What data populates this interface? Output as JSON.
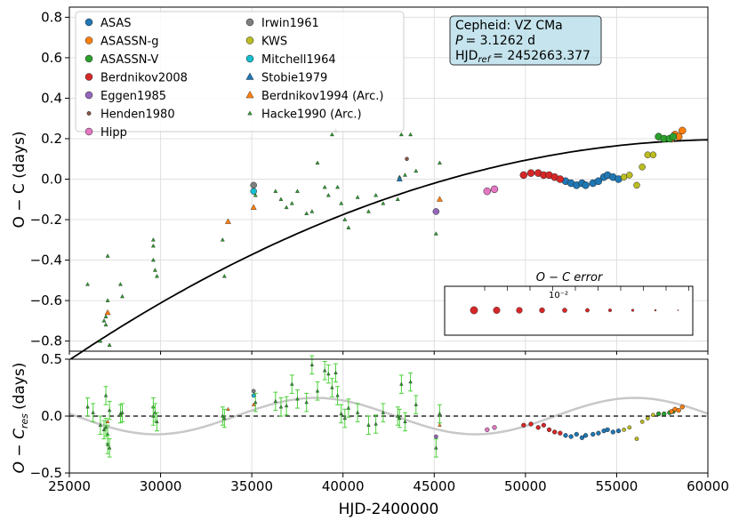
{
  "chart_data": [
    {
      "panel": "top",
      "type": "scatter",
      "xlabel": "",
      "ylabel": "O − C (days)",
      "xlim": [
        25000,
        60000
      ],
      "ylim": [
        -0.85,
        0.85
      ],
      "yticks": [
        "−0.8",
        "−0.6",
        "−0.4",
        "−0.2",
        "0.0",
        "0.2",
        "0.4",
        "0.6",
        "0.8"
      ],
      "ytick_values": [
        -0.8,
        -0.6,
        -0.4,
        -0.2,
        0.0,
        0.2,
        0.4,
        0.6,
        0.8
      ],
      "grid": true,
      "info_box": [
        "Cepheid: VZ CMa",
        "P = 3.1262 d",
        "HJDref = 2452663.377"
      ],
      "info_lines": {
        "name": "Cepheid: VZ CMa",
        "period_label": "P",
        "period_value": "= 3.1262 d",
        "hjd_label": "HJD",
        "hjd_sub": "ref",
        "hjd_value": "= 2452663.377"
      },
      "size_legend": {
        "title": "O − C error",
        "scale_label": "10⁻²",
        "steps": 10
      },
      "fit_curve": {
        "a": -8.4e-10,
        "x0": 61000,
        "c": 0.195
      },
      "legend": [
        {
          "name": "ASAS",
          "color": "#1f77b4",
          "marker": "circle"
        },
        {
          "name": "ASASSN-g",
          "color": "#ff7f0e",
          "marker": "circle"
        },
        {
          "name": "ASASSN-V",
          "color": "#2ca02c",
          "marker": "circle"
        },
        {
          "name": "Berdnikov2008",
          "color": "#d62728",
          "marker": "circle"
        },
        {
          "name": "Eggen1985",
          "color": "#9467bd",
          "marker": "circle"
        },
        {
          "name": "Henden1980",
          "color": "#8c564b",
          "marker": "circle"
        },
        {
          "name": "Hipp",
          "color": "#e377c2",
          "marker": "circle"
        },
        {
          "name": "Irwin1961",
          "color": "#7f7f7f",
          "marker": "circle"
        },
        {
          "name": "KWS",
          "color": "#bcbd22",
          "marker": "circle"
        },
        {
          "name": "Mitchell1964",
          "color": "#17becf",
          "marker": "circle"
        },
        {
          "name": "Stobie1979",
          "color": "#1f77b4",
          "marker": "triangle"
        },
        {
          "name": "Berdnikov1994 (Arc.)",
          "color": "#ff7f0e",
          "marker": "triangle"
        },
        {
          "name": "Hacke1990 (Arc.)",
          "color": "#2ca02c",
          "marker": "triangle"
        }
      ],
      "series": [
        {
          "name": "ASAS",
          "x": [
            52200,
            52500,
            52800,
            53100,
            53300,
            53700,
            54000,
            54300,
            54500,
            54800,
            55100
          ],
          "y": [
            -0.01,
            -0.02,
            -0.03,
            -0.02,
            -0.03,
            -0.02,
            -0.01,
            0.01,
            0.02,
            0.01,
            0.0
          ]
        },
        {
          "name": "ASASSN-g",
          "x": [
            58000,
            58200,
            58400,
            58600
          ],
          "y": [
            0.2,
            0.22,
            0.21,
            0.24
          ]
        },
        {
          "name": "ASASSN-V",
          "x": [
            57300,
            57600,
            57900,
            58100
          ],
          "y": [
            0.21,
            0.2,
            0.2,
            0.21
          ]
        },
        {
          "name": "Berdnikov2008",
          "x": [
            49900,
            50300,
            50700,
            51000,
            51300,
            51600,
            51900
          ],
          "y": [
            0.02,
            0.03,
            0.03,
            0.02,
            0.02,
            0.01,
            0.0
          ]
        },
        {
          "name": "Eggen1985",
          "x": [
            45100
          ],
          "y": [
            -0.16
          ]
        },
        {
          "name": "Henden1980",
          "x": [
            43500
          ],
          "y": [
            0.1
          ]
        },
        {
          "name": "Hipp",
          "x": [
            47900,
            48300
          ],
          "y": [
            -0.06,
            -0.05
          ]
        },
        {
          "name": "Irwin1961",
          "x": [
            35100
          ],
          "y": [
            -0.03
          ]
        },
        {
          "name": "KWS",
          "x": [
            55400,
            55700,
            56100,
            56400,
            56700,
            57000
          ],
          "y": [
            0.01,
            0.02,
            -0.03,
            0.06,
            0.12,
            0.12
          ]
        },
        {
          "name": "Mitchell1964",
          "x": [
            35100
          ],
          "y": [
            -0.06
          ]
        },
        {
          "name": "Berdnikov1994 (Arc.)",
          "x": [
            27100,
            33700,
            35100,
            45300
          ],
          "y": [
            -0.66,
            -0.21,
            -0.14,
            -0.1
          ]
        },
        {
          "name": "Hacke1990 (Arc.)",
          "x": [
            26000,
            26700,
            26900,
            27000,
            27000,
            27100,
            27100,
            27200,
            27800,
            27900,
            29600,
            29600,
            29600,
            29700,
            29800,
            33400,
            33500,
            35200,
            36300,
            36600,
            36900,
            37200,
            37500,
            38000,
            38300,
            38600,
            39000,
            39200,
            39400,
            39600,
            39700,
            39900,
            40100,
            40300,
            40800,
            41400,
            41800,
            42200,
            43000,
            43100,
            43200,
            43400,
            43700,
            44000,
            45100,
            45300
          ],
          "y": [
            -0.52,
            -0.8,
            -0.7,
            -0.68,
            -0.72,
            -0.6,
            -0.38,
            -0.82,
            -0.52,
            -0.58,
            -0.3,
            -0.33,
            -0.4,
            -0.45,
            -0.48,
            -0.3,
            -0.48,
            -0.08,
            -0.06,
            -0.1,
            -0.14,
            -0.12,
            -0.06,
            -0.17,
            -0.16,
            0.08,
            -0.04,
            -0.08,
            0.22,
            0.24,
            -0.04,
            -0.12,
            -0.2,
            -0.24,
            -0.09,
            -0.16,
            -0.08,
            -0.12,
            -0.1,
            0.01,
            0.22,
            0.02,
            0.22,
            0.04,
            -0.27,
            0.08
          ]
        },
        {
          "name": "Stobie1979",
          "x": [
            43100
          ],
          "y": [
            0.0
          ]
        }
      ]
    },
    {
      "panel": "bottom",
      "type": "scatter",
      "xlabel": "HJD-2400000",
      "ylabel": "O − Cres (days)",
      "ylabel_main": "O − C",
      "ylabel_sub": "res",
      "ylabel_unit": "(days)",
      "xlim": [
        25000,
        60000
      ],
      "ylim": [
        -0.5,
        0.5
      ],
      "xticks": [
        "25000",
        "30000",
        "35000",
        "40000",
        "45000",
        "50000",
        "55000",
        "60000"
      ],
      "xtick_values": [
        25000,
        30000,
        35000,
        40000,
        45000,
        50000,
        55000,
        60000
      ],
      "yticks": [
        "−0.5",
        "0.0",
        "0.5"
      ],
      "ytick_values": [
        -0.5,
        0.0,
        0.5
      ],
      "zero_line": "dashed",
      "model_curve": {
        "amplitude": 0.16,
        "period": 17500,
        "phase_x": 38500
      },
      "error_color": "#4cd23a",
      "series": [
        {
          "name": "Hacke1990 (Arc.)",
          "x": [
            26000,
            26300,
            26700,
            26900,
            27000,
            27000,
            27100,
            27100,
            27200,
            27200,
            27800,
            27900,
            29600,
            29600,
            29700,
            29800,
            33400,
            33500,
            35200,
            36300,
            36600,
            36900,
            37200,
            37500,
            38000,
            38300,
            38600,
            39000,
            39200,
            39400,
            39600,
            39700,
            39900,
            40100,
            40300,
            40800,
            41400,
            41800,
            42200,
            43000,
            43100,
            43200,
            43400,
            43700,
            44000,
            45100,
            45300
          ],
          "y": [
            0.08,
            0.03,
            -0.08,
            -0.12,
            -0.1,
            0.18,
            -0.16,
            -0.25,
            -0.28,
            0.05,
            0.02,
            0.03,
            0.08,
            0.0,
            0.03,
            -0.05,
            0.0,
            -0.02,
            0.12,
            0.13,
            0.08,
            0.09,
            0.28,
            0.15,
            0.12,
            0.45,
            0.22,
            0.4,
            0.37,
            0.25,
            0.38,
            0.18,
            0.02,
            -0.02,
            0.07,
            0.03,
            -0.08,
            -0.07,
            0.03,
            0.0,
            -0.02,
            0.28,
            -0.05,
            0.3,
            0.1,
            -0.28,
            0.02
          ],
          "err": [
            0.08,
            0.08,
            0.08,
            0.08,
            0.08,
            0.08,
            0.08,
            0.08,
            0.08,
            0.08,
            0.08,
            0.08,
            0.08,
            0.08,
            0.08,
            0.08,
            0.08,
            0.08,
            0.08,
            0.08,
            0.08,
            0.08,
            0.08,
            0.08,
            0.08,
            0.08,
            0.08,
            0.08,
            0.08,
            0.08,
            0.08,
            0.08,
            0.08,
            0.08,
            0.08,
            0.08,
            0.08,
            0.08,
            0.08,
            0.08,
            0.08,
            0.08,
            0.08,
            0.08,
            0.08,
            0.08,
            0.08
          ]
        },
        {
          "name": "Berdnikov1994 (Arc.)",
          "x": [
            27100,
            33700,
            35100,
            45300
          ],
          "y": [
            -0.05,
            0.06,
            0.1,
            -0.08
          ]
        },
        {
          "name": "Eggen1985",
          "x": [
            45100
          ],
          "y": [
            -0.18
          ]
        },
        {
          "name": "Hipp",
          "x": [
            47900,
            48300
          ],
          "y": [
            -0.12,
            -0.1
          ]
        },
        {
          "name": "Irwin1961",
          "x": [
            35100
          ],
          "y": [
            0.22
          ]
        },
        {
          "name": "Mitchell1964",
          "x": [
            35100
          ],
          "y": [
            0.18
          ]
        },
        {
          "name": "Berdnikov2008",
          "x": [
            49900,
            50300,
            50700,
            51000,
            51300,
            51600,
            51900
          ],
          "y": [
            -0.08,
            -0.07,
            -0.1,
            -0.08,
            -0.12,
            -0.14,
            -0.15
          ]
        },
        {
          "name": "ASAS",
          "x": [
            52200,
            52500,
            52800,
            53100,
            53300,
            53700,
            54000,
            54300,
            54500,
            54800,
            55100
          ],
          "y": [
            -0.17,
            -0.18,
            -0.16,
            -0.19,
            -0.17,
            -0.16,
            -0.15,
            -0.13,
            -0.12,
            -0.14,
            -0.13
          ]
        },
        {
          "name": "KWS",
          "x": [
            55400,
            55700,
            56100,
            56400,
            56700,
            57000
          ],
          "y": [
            -0.12,
            -0.1,
            -0.2,
            -0.05,
            -0.02,
            0.01
          ]
        },
        {
          "name": "ASASSN-V",
          "x": [
            57300,
            57600,
            57900,
            58100
          ],
          "y": [
            0.02,
            0.02,
            0.03,
            0.04
          ]
        },
        {
          "name": "ASASSN-g",
          "x": [
            58000,
            58200,
            58400,
            58600
          ],
          "y": [
            0.04,
            0.06,
            0.05,
            0.08
          ]
        }
      ]
    }
  ]
}
